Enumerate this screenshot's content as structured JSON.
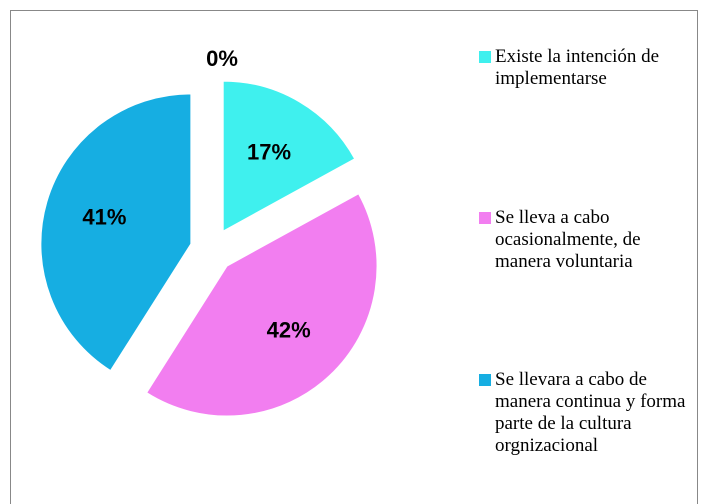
{
  "chart_data": {
    "type": "pie",
    "categories": [
      "Existe la intención de implementarse",
      "Se lleva a cabo ocasionalmente, de manera voluntaria",
      "Se llevara a cabo de manera continua y forma parte de la cultura orgnizacional",
      null
    ],
    "values": [
      17,
      42,
      41,
      0
    ],
    "value_labels": [
      "17%",
      "42%",
      "41%",
      "0%"
    ],
    "colors": [
      "#3ff0ee",
      "#f27ef0",
      "#16aee2"
    ],
    "exploded": true,
    "legend": "right"
  }
}
